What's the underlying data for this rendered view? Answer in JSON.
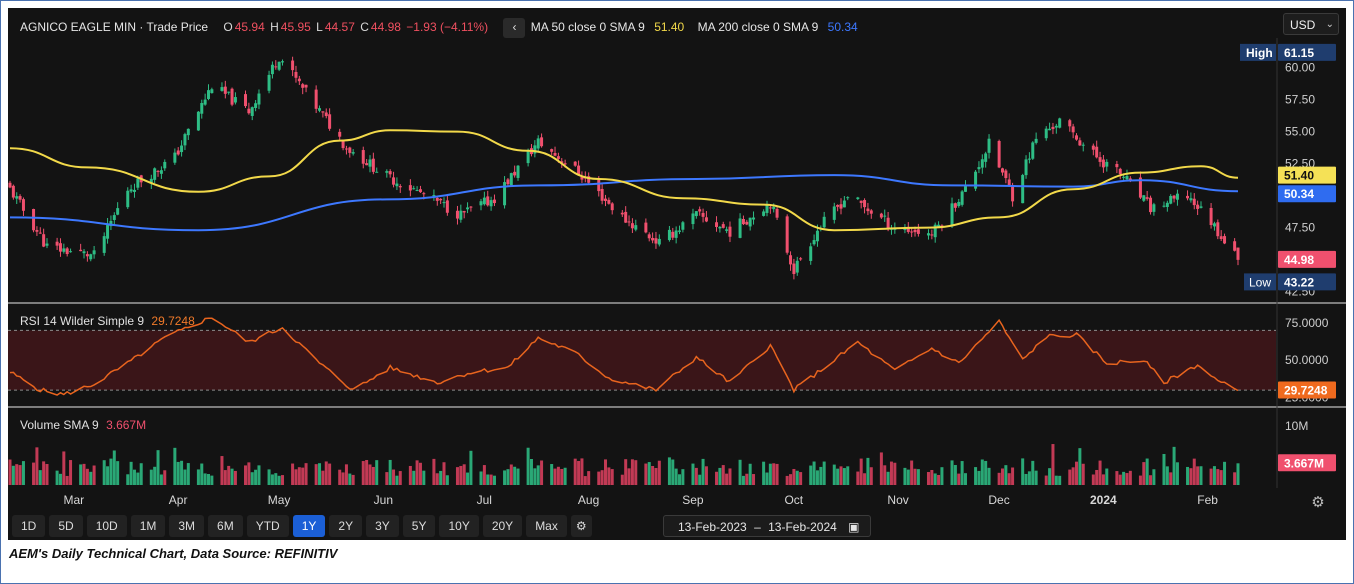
{
  "header": {
    "instrument": "AGNICO EAGLE MIN · Trade Price",
    "ohlc": [
      {
        "k": "O",
        "v": "45.94"
      },
      {
        "k": "H",
        "v": "45.95"
      },
      {
        "k": "L",
        "v": "44.57"
      },
      {
        "k": "C",
        "v": "44.98"
      }
    ],
    "change": "−1.93 (−4.11%)",
    "collapse_icon": "chevron-left-icon",
    "ma50_label": "MA 50 close 0 SMA 9",
    "ma50_value": "51.40",
    "ma200_label": "MA 200 close 0 SMA 9",
    "ma200_value": "50.34",
    "currency": "USD",
    "currency_icon": "chevron-down-icon"
  },
  "colors": {
    "bg": "#131313",
    "up": "#2ebd85",
    "down": "#f0506e",
    "ma50": "#f2d94a",
    "ma200": "#3d78ff",
    "rsi": "#e8641e",
    "accent": "#1b5fd6"
  },
  "price_pane": {
    "high_label": "High",
    "high_value": "61.15",
    "low_label": "Low",
    "low_value": "43.22",
    "last_value": "44.98",
    "ma50_badge": "51.40",
    "ma200_badge": "50.34",
    "ticks": [
      "60.00",
      "57.50",
      "55.00",
      "52.50",
      "50.00",
      "47.50",
      "45.00",
      "42.50"
    ]
  },
  "rsi_pane": {
    "label": "RSI 14 Wilder Simple 9",
    "value": "29.7248",
    "ticks": [
      "75.0000",
      "50.0000",
      "25.0000"
    ],
    "badge": "29.7248"
  },
  "volume_pane": {
    "label": "Volume SMA 9",
    "value": "3.667M",
    "tick": "10M",
    "badge": "3.667M"
  },
  "xaxis": {
    "labels": [
      "Mar",
      "Apr",
      "May",
      "Jun",
      "Jul",
      "Aug",
      "Sep",
      "Oct",
      "Nov",
      "Dec",
      "2024",
      "Feb"
    ]
  },
  "toolbar": {
    "ranges": [
      "1D",
      "5D",
      "10D",
      "1M",
      "3M",
      "6M",
      "YTD",
      "1Y",
      "2Y",
      "3Y",
      "5Y",
      "10Y",
      "20Y",
      "Max"
    ],
    "active": "1Y",
    "settings_icon": "gear-icon",
    "date_from": "13-Feb-2023",
    "date_sep": "–",
    "date_to": "13-Feb-2024",
    "calendar_icon": "calendar-icon",
    "axis_settings_icon": "gear-icon"
  },
  "caption": "AEM's Daily Technical Chart, Data Source: REFINITIV",
  "chart_data": [
    {
      "type": "candlestick",
      "title": "AGNICO EAGLE MIN · Trade Price",
      "x_range": [
        "13-Feb-2023",
        "13-Feb-2024"
      ],
      "ylim": [
        42.0,
        62.0
      ],
      "price_anchors": [
        {
          "date": "2023-02-13",
          "close": 50.5
        },
        {
          "date": "2023-02-24",
          "close": 46.0
        },
        {
          "date": "2023-03-10",
          "close": 45.3
        },
        {
          "date": "2023-03-20",
          "close": 50.5
        },
        {
          "date": "2023-04-03",
          "close": 53.0
        },
        {
          "date": "2023-04-14",
          "close": 58.6
        },
        {
          "date": "2023-04-25",
          "close": 56.6
        },
        {
          "date": "2023-05-04",
          "close": 60.9
        },
        {
          "date": "2023-05-12",
          "close": 58.0
        },
        {
          "date": "2023-05-24",
          "close": 53.8
        },
        {
          "date": "2023-06-05",
          "close": 51.5
        },
        {
          "date": "2023-06-15",
          "close": 50.2
        },
        {
          "date": "2023-06-27",
          "close": 48.5
        },
        {
          "date": "2023-07-07",
          "close": 49.8
        },
        {
          "date": "2023-07-20",
          "close": 54.2
        },
        {
          "date": "2023-08-01",
          "close": 51.8
        },
        {
          "date": "2023-08-14",
          "close": 48.3
        },
        {
          "date": "2023-08-25",
          "close": 46.3
        },
        {
          "date": "2023-09-05",
          "close": 48.5
        },
        {
          "date": "2023-09-15",
          "close": 47.2
        },
        {
          "date": "2023-09-27",
          "close": 49.5
        },
        {
          "date": "2023-10-04",
          "close": 44.2
        },
        {
          "date": "2023-10-11",
          "close": 47.3
        },
        {
          "date": "2023-10-20",
          "close": 50.0
        },
        {
          "date": "2023-11-03",
          "close": 47.5
        },
        {
          "date": "2023-11-14",
          "close": 47.0
        },
        {
          "date": "2023-11-24",
          "close": 50.5
        },
        {
          "date": "2023-12-01",
          "close": 54.0
        },
        {
          "date": "2023-12-08",
          "close": 50.0
        },
        {
          "date": "2023-12-15",
          "close": 54.5
        },
        {
          "date": "2023-12-22",
          "close": 55.8
        },
        {
          "date": "2024-01-02",
          "close": 53.0
        },
        {
          "date": "2024-01-10",
          "close": 51.5
        },
        {
          "date": "2024-01-18",
          "close": 49.0
        },
        {
          "date": "2024-01-29",
          "close": 50.0
        },
        {
          "date": "2024-02-05",
          "close": 48.0
        },
        {
          "date": "2024-02-13",
          "close": 44.98
        }
      ],
      "series": [
        {
          "name": "MA 50 close 0 SMA 9",
          "last": 51.4,
          "values": [
            {
              "date": "2023-02-13",
              "v": 53.7
            },
            {
              "date": "2023-03-08",
              "v": 52.2
            },
            {
              "date": "2023-04-10",
              "v": 50.3
            },
            {
              "date": "2023-05-01",
              "v": 51.5
            },
            {
              "date": "2023-05-22",
              "v": 54.3
            },
            {
              "date": "2023-06-06",
              "v": 55.1
            },
            {
              "date": "2023-06-26",
              "v": 55.0
            },
            {
              "date": "2023-07-17",
              "v": 53.5
            },
            {
              "date": "2023-08-07",
              "v": 51.3
            },
            {
              "date": "2023-09-01",
              "v": 49.8
            },
            {
              "date": "2023-09-25",
              "v": 49.3
            },
            {
              "date": "2023-10-16",
              "v": 47.3
            },
            {
              "date": "2023-11-13",
              "v": 47.5
            },
            {
              "date": "2023-12-04",
              "v": 48.3
            },
            {
              "date": "2023-12-26",
              "v": 50.5
            },
            {
              "date": "2024-01-15",
              "v": 51.8
            },
            {
              "date": "2024-02-02",
              "v": 52.3
            },
            {
              "date": "2024-02-13",
              "v": 51.4
            }
          ]
        },
        {
          "name": "MA 200 close 0 SMA 9",
          "last": 50.34,
          "values": [
            {
              "date": "2023-02-13",
              "v": 48.3
            },
            {
              "date": "2023-04-10",
              "v": 47.3
            },
            {
              "date": "2023-06-05",
              "v": 49.7
            },
            {
              "date": "2023-07-20",
              "v": 50.8
            },
            {
              "date": "2023-09-05",
              "v": 51.3
            },
            {
              "date": "2023-10-16",
              "v": 51.6
            },
            {
              "date": "2023-11-20",
              "v": 50.8
            },
            {
              "date": "2023-12-26",
              "v": 50.7
            },
            {
              "date": "2024-01-15",
              "v": 51.2
            },
            {
              "date": "2024-02-13",
              "v": 50.34
            }
          ]
        }
      ],
      "high": 61.15,
      "low": 43.22,
      "last": 44.98
    },
    {
      "type": "line",
      "title": "RSI 14 Wilder Simple 9",
      "ylim": [
        22,
        85
      ],
      "overbought": 70,
      "oversold": 30,
      "last": 29.7248,
      "values": [
        {
          "date": "2023-02-13",
          "v": 42
        },
        {
          "date": "2023-02-22",
          "v": 30
        },
        {
          "date": "2023-03-01",
          "v": 27
        },
        {
          "date": "2023-03-10",
          "v": 34
        },
        {
          "date": "2023-03-20",
          "v": 48
        },
        {
          "date": "2023-03-31",
          "v": 65
        },
        {
          "date": "2023-04-14",
          "v": 79
        },
        {
          "date": "2023-04-25",
          "v": 62
        },
        {
          "date": "2023-05-05",
          "v": 72
        },
        {
          "date": "2023-05-16",
          "v": 48
        },
        {
          "date": "2023-05-26",
          "v": 30
        },
        {
          "date": "2023-06-06",
          "v": 45
        },
        {
          "date": "2023-06-20",
          "v": 35
        },
        {
          "date": "2023-06-30",
          "v": 42
        },
        {
          "date": "2023-07-11",
          "v": 45
        },
        {
          "date": "2023-07-20",
          "v": 65
        },
        {
          "date": "2023-07-31",
          "v": 55
        },
        {
          "date": "2023-08-10",
          "v": 38
        },
        {
          "date": "2023-08-24",
          "v": 30
        },
        {
          "date": "2023-09-05",
          "v": 52
        },
        {
          "date": "2023-09-15",
          "v": 35
        },
        {
          "date": "2023-09-27",
          "v": 60
        },
        {
          "date": "2023-10-04",
          "v": 30
        },
        {
          "date": "2023-10-13",
          "v": 45
        },
        {
          "date": "2023-10-23",
          "v": 62
        },
        {
          "date": "2023-11-03",
          "v": 43
        },
        {
          "date": "2023-11-14",
          "v": 58
        },
        {
          "date": "2023-11-22",
          "v": 48
        },
        {
          "date": "2023-12-04",
          "v": 76
        },
        {
          "date": "2023-12-11",
          "v": 50
        },
        {
          "date": "2023-12-18",
          "v": 66
        },
        {
          "date": "2023-12-27",
          "v": 67
        },
        {
          "date": "2024-01-05",
          "v": 48
        },
        {
          "date": "2024-01-16",
          "v": 50
        },
        {
          "date": "2024-01-22",
          "v": 35
        },
        {
          "date": "2024-02-01",
          "v": 47
        },
        {
          "date": "2024-02-07",
          "v": 36
        },
        {
          "date": "2024-02-13",
          "v": 29.7248
        }
      ]
    },
    {
      "type": "bar",
      "title": "Volume SMA 9",
      "ylim": [
        0,
        12000000
      ],
      "last": 3667000,
      "note_values_estimated": true
    }
  ]
}
